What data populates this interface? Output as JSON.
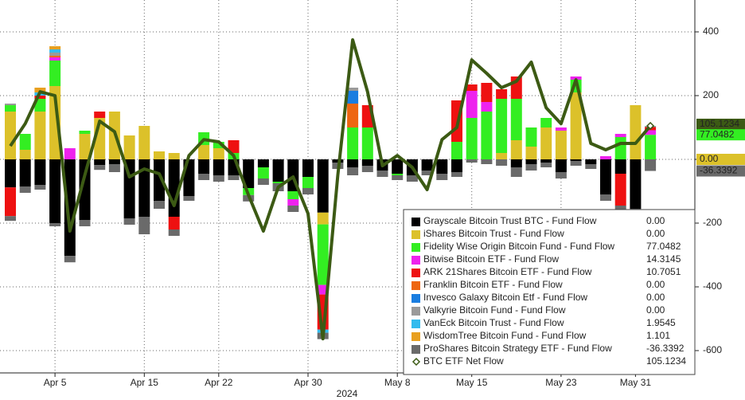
{
  "chart_data": {
    "type": "bar",
    "categories": [
      null,
      null,
      null,
      "Apr 5",
      null,
      null,
      null,
      null,
      null,
      "Apr 15",
      null,
      null,
      null,
      null,
      "Apr 22",
      null,
      null,
      null,
      null,
      null,
      "Apr 30",
      null,
      null,
      null,
      null,
      null,
      "May 8",
      null,
      null,
      null,
      null,
      "May 15",
      null,
      null,
      null,
      null,
      null,
      "May 23",
      null,
      null,
      null,
      null,
      "May 31",
      null
    ],
    "x_annotation": "2024",
    "ylim": [
      -665,
      500
    ],
    "yticks": [
      400,
      200,
      0,
      -200,
      -400,
      -600
    ],
    "grid": true,
    "series": [
      {
        "name": "Grayscale Bitcoin Trust BTC - Fund Flow",
        "color": "#000000",
        "values": [
          -88,
          -85,
          -80,
          -200,
          -303,
          -190,
          -18,
          -15,
          -185,
          -180,
          -130,
          -180,
          -115,
          -45,
          -50,
          -50,
          -90,
          -25,
          -70,
          -100,
          -55,
          -167,
          -10,
          -25,
          -20,
          -35,
          -45,
          -50,
          -35,
          -45,
          -40,
          0,
          0,
          0,
          -25,
          -15,
          -10,
          -40,
          -5,
          -15,
          -110,
          -45,
          -155,
          0
        ],
        "value_labels": [
          null,
          null,
          null,
          null,
          null,
          null,
          null,
          null,
          null,
          null,
          null,
          null,
          null,
          null,
          null,
          null,
          null,
          null,
          null,
          null,
          null,
          null,
          null,
          null,
          null,
          null,
          null,
          null,
          null,
          null,
          null,
          null,
          null,
          null,
          null,
          null,
          null,
          null,
          null,
          null,
          null,
          null,
          null,
          "0.00"
        ]
      },
      {
        "name": "iShares Bitcoin Trust - Fund Flow",
        "color": "#dcc12a",
        "values": [
          150,
          30,
          150,
          230,
          0,
          80,
          130,
          150,
          75,
          105,
          25,
          20,
          0,
          45,
          35,
          0,
          0,
          0,
          0,
          0,
          0,
          -37,
          0,
          0,
          0,
          0,
          0,
          0,
          0,
          0,
          0,
          0,
          0,
          20,
          60,
          40,
          100,
          90,
          210,
          0,
          0,
          0,
          170,
          0
        ],
        "value_labels": [
          null,
          null,
          null,
          null,
          null,
          null,
          null,
          null,
          null,
          null,
          null,
          null,
          null,
          null,
          null,
          null,
          null,
          null,
          null,
          null,
          null,
          null,
          null,
          null,
          null,
          null,
          null,
          null,
          null,
          null,
          null,
          null,
          null,
          null,
          null,
          null,
          null,
          null,
          null,
          null,
          null,
          null,
          null,
          "0.00"
        ]
      },
      {
        "name": "Fidelity Wise Origin Bitcoin Fund - Fund Flow",
        "color": "#33ee22",
        "values": [
          20,
          50,
          40,
          80,
          0,
          10,
          0,
          0,
          0,
          0,
          0,
          0,
          0,
          40,
          20,
          20,
          -22,
          -35,
          -5,
          -25,
          -35,
          -190,
          0,
          100,
          100,
          0,
          -5,
          0,
          0,
          0,
          55,
          130,
          150,
          170,
          130,
          60,
          30,
          0,
          40,
          0,
          0,
          70,
          0,
          77.0482
        ]
      },
      {
        "name": "Bitwise Bitcoin ETF - Fund Flow",
        "color": "#ee22ee",
        "values": [
          0,
          0,
          0,
          10,
          35,
          0,
          0,
          0,
          0,
          0,
          0,
          0,
          0,
          0,
          0,
          0,
          0,
          0,
          0,
          -20,
          0,
          -30,
          0,
          0,
          0,
          0,
          0,
          0,
          0,
          0,
          0,
          85,
          30,
          0,
          0,
          0,
          0,
          10,
          10,
          0,
          10,
          10,
          0,
          14.3145
        ]
      },
      {
        "name": "ARK 21Shares Bitcoin ETF - Fund Flow",
        "color": "#ee1111",
        "values": [
          -90,
          0,
          10,
          0,
          0,
          0,
          20,
          0,
          0,
          0,
          0,
          -40,
          0,
          0,
          0,
          40,
          0,
          0,
          0,
          0,
          0,
          -110,
          0,
          0,
          70,
          0,
          0,
          0,
          0,
          0,
          130,
          20,
          60,
          30,
          70,
          0,
          0,
          0,
          0,
          0,
          0,
          -100,
          0,
          10.7051
        ]
      },
      {
        "name": "Franklin Bitcoin ETF - Fund Flow",
        "color": "#ee6611",
        "values": [
          0,
          0,
          0,
          5,
          0,
          0,
          0,
          0,
          0,
          0,
          0,
          0,
          0,
          0,
          0,
          0,
          0,
          0,
          0,
          0,
          0,
          0,
          0,
          75,
          0,
          0,
          0,
          0,
          0,
          0,
          0,
          0,
          0,
          0,
          0,
          0,
          0,
          0,
          0,
          0,
          0,
          0,
          0,
          0
        ],
        "value_labels": [
          null,
          null,
          null,
          null,
          null,
          null,
          null,
          null,
          null,
          null,
          null,
          null,
          null,
          null,
          null,
          null,
          null,
          null,
          null,
          null,
          null,
          null,
          null,
          null,
          null,
          null,
          null,
          null,
          null,
          null,
          null,
          null,
          null,
          null,
          null,
          null,
          null,
          null,
          null,
          null,
          null,
          null,
          null,
          "0.00"
        ]
      },
      {
        "name": "Invesco Galaxy Bitcoin Etf - Fund Flow",
        "color": "#1a7de0",
        "values": [
          0,
          0,
          0,
          0,
          0,
          0,
          0,
          0,
          0,
          0,
          0,
          0,
          0,
          0,
          0,
          0,
          0,
          0,
          0,
          0,
          0,
          0,
          0,
          40,
          0,
          0,
          0,
          0,
          0,
          0,
          0,
          0,
          0,
          0,
          0,
          0,
          0,
          0,
          0,
          0,
          0,
          0,
          0,
          0
        ],
        "value_labels": [
          null,
          null,
          null,
          null,
          null,
          null,
          null,
          null,
          null,
          null,
          null,
          null,
          null,
          null,
          null,
          null,
          null,
          null,
          null,
          null,
          null,
          null,
          null,
          null,
          null,
          null,
          null,
          null,
          null,
          null,
          null,
          null,
          null,
          null,
          null,
          null,
          null,
          null,
          null,
          null,
          null,
          null,
          null,
          "0.00"
        ]
      },
      {
        "name": "Valkyrie Bitcoin Fund - Fund Flow",
        "color": "#9a9a9a",
        "values": [
          5,
          0,
          0,
          10,
          0,
          0,
          0,
          0,
          0,
          0,
          0,
          0,
          0,
          0,
          0,
          0,
          0,
          0,
          0,
          0,
          0,
          0,
          0,
          10,
          0,
          0,
          0,
          0,
          0,
          0,
          0,
          0,
          0,
          0,
          0,
          0,
          0,
          0,
          0,
          0,
          0,
          0,
          0,
          0
        ],
        "value_labels": [
          null,
          null,
          null,
          null,
          null,
          null,
          null,
          null,
          null,
          null,
          null,
          null,
          null,
          null,
          null,
          null,
          null,
          null,
          null,
          null,
          null,
          null,
          null,
          null,
          null,
          null,
          null,
          null,
          null,
          null,
          null,
          null,
          null,
          null,
          null,
          null,
          null,
          null,
          null,
          null,
          null,
          null,
          null,
          "0.00"
        ]
      },
      {
        "name": "VanEck Bitcoin Trust - Fund Flow",
        "color": "#33bbee",
        "values": [
          0,
          0,
          10,
          10,
          0,
          0,
          0,
          0,
          0,
          0,
          0,
          0,
          0,
          0,
          0,
          0,
          0,
          0,
          0,
          0,
          0,
          -10,
          0,
          0,
          0,
          0,
          0,
          0,
          0,
          0,
          0,
          0,
          0,
          0,
          0,
          0,
          0,
          0,
          0,
          0,
          0,
          0,
          0,
          1.9545
        ]
      },
      {
        "name": "WisdomTree Bitcoin Fund - Fund Flow",
        "color": "#e8a020",
        "values": [
          0,
          0,
          15,
          10,
          0,
          0,
          0,
          0,
          0,
          0,
          0,
          0,
          0,
          0,
          0,
          0,
          0,
          0,
          0,
          0,
          0,
          0,
          0,
          0,
          0,
          0,
          0,
          0,
          0,
          0,
          0,
          0,
          0,
          0,
          0,
          0,
          0,
          0,
          0,
          0,
          0,
          0,
          0,
          1.101
        ]
      },
      {
        "name": "ProShares Bitcoin Strategy ETF - Fund Flow",
        "color": "#6a6a6a",
        "values": [
          -15,
          -20,
          -15,
          -10,
          -20,
          -20,
          -15,
          -25,
          -20,
          -55,
          -25,
          -20,
          -15,
          -20,
          -20,
          -15,
          -20,
          -20,
          -25,
          -20,
          -20,
          -20,
          -20,
          -25,
          -20,
          -20,
          -15,
          -20,
          -15,
          -20,
          -15,
          -10,
          -15,
          -20,
          -30,
          -20,
          -15,
          -20,
          -15,
          -15,
          -20,
          -30,
          -35,
          -36.3392
        ]
      },
      {
        "name": "BTC ETF Net Flow",
        "color": "#3c5a14",
        "type": "line",
        "values": [
          42,
          112,
          212,
          200,
          -225,
          -50,
          120,
          87,
          -55,
          -30,
          -45,
          -145,
          12,
          62,
          55,
          12,
          -112,
          -225,
          -87,
          -55,
          -170,
          -563,
          -50,
          375,
          212,
          -20,
          12,
          -25,
          -95,
          62,
          100,
          312,
          270,
          225,
          245,
          305,
          162,
          112,
          250,
          50,
          30,
          50,
          50,
          105.1234
        ]
      }
    ]
  }
}
